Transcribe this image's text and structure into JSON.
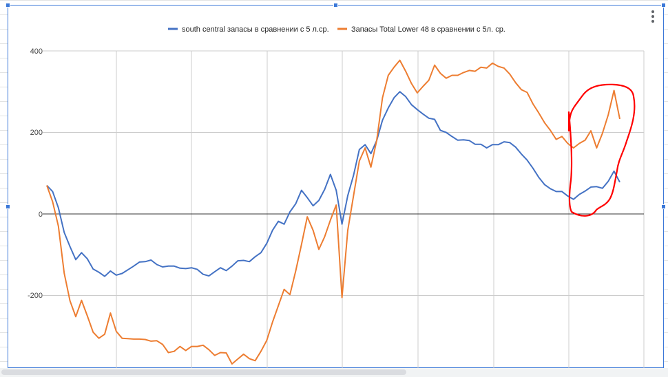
{
  "colors": {
    "series_1": "#4472c4",
    "series_2": "#ed7d31",
    "annotation": "#ff0000",
    "selection": "#3b78d8"
  },
  "icons": {
    "menu": "three-dots-vertical-icon"
  },
  "chart_data": {
    "type": "line",
    "title": "",
    "xlabel": "",
    "ylabel": "",
    "ylim": [
      -300,
      400
    ],
    "y_ticks": [
      "400",
      "200",
      "0",
      "-200"
    ],
    "grid": true,
    "legend_position": "top",
    "annotation": "red freehand circle around the right end of both series",
    "series": [
      {
        "name": "south central запасы в сравнении с 5 л.ср.",
        "color": "#4472c4",
        "values": [
          70,
          55,
          15,
          -45,
          -80,
          -112,
          -95,
          -110,
          -135,
          -143,
          -153,
          -140,
          -150,
          -146,
          -137,
          -128,
          -118,
          -117,
          -113,
          -124,
          -130,
          -128,
          -128,
          -133,
          -134,
          -132,
          -136,
          -148,
          -152,
          -142,
          -132,
          -139,
          -128,
          -115,
          -114,
          -117,
          -105,
          -95,
          -72,
          -40,
          -18,
          -25,
          5,
          25,
          58,
          40,
          20,
          33,
          60,
          97,
          58,
          -25,
          45,
          95,
          158,
          170,
          148,
          180,
          230,
          260,
          285,
          300,
          288,
          268,
          256,
          245,
          235,
          232,
          205,
          200,
          190,
          181,
          182,
          180,
          171,
          171,
          162,
          170,
          170,
          177,
          175,
          164,
          147,
          132,
          112,
          90,
          72,
          62,
          55,
          55,
          44,
          36,
          48,
          56,
          66,
          67,
          63,
          80,
          105,
          78
        ]
      },
      {
        "name": "Запасы Total Lower 48 в сравнении с 5л. ср.",
        "color": "#ed7d31",
        "values": [
          70,
          30,
          -30,
          -145,
          -213,
          -252,
          -212,
          -250,
          -290,
          -305,
          -295,
          -243,
          -288,
          -305,
          -306,
          -307,
          -307,
          -308,
          -312,
          -311,
          -320,
          -340,
          -337,
          -325,
          -335,
          -325,
          -325,
          -322,
          -333,
          -347,
          -340,
          -341,
          -368,
          -356,
          -344,
          -355,
          -360,
          -337,
          -310,
          -265,
          -225,
          -185,
          -198,
          -140,
          -75,
          -7,
          -40,
          -87,
          -56,
          -15,
          22,
          -205,
          -40,
          45,
          130,
          162,
          115,
          180,
          285,
          340,
          360,
          377,
          350,
          320,
          297,
          313,
          328,
          365,
          345,
          333,
          340,
          340,
          347,
          352,
          350,
          360,
          358,
          370,
          362,
          358,
          343,
          322,
          305,
          298,
          270,
          248,
          224,
          205,
          183,
          190,
          173,
          162,
          173,
          181,
          204,
          162,
          198,
          243,
          303,
          233
        ]
      }
    ]
  }
}
